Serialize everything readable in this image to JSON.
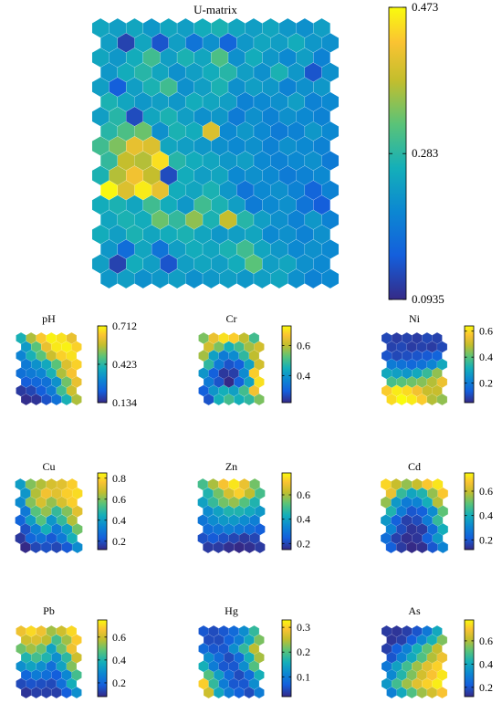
{
  "chart_data": [
    {
      "type": "heatmap",
      "title": "U-matrix",
      "grid_shape": [
        18,
        14
      ],
      "colormap": "parula",
      "colorbar": {
        "min": 0.0935,
        "max": 0.473,
        "ticks": [
          "0.473",
          "0.283",
          "0.0935"
        ]
      },
      "values": [
        [
          0.25,
          0.24,
          0.25,
          0.23,
          0.25,
          0.24,
          0.26,
          0.27,
          0.25,
          0.24,
          0.25,
          0.23,
          0.22,
          0.24
        ],
        [
          0.24,
          0.12,
          0.25,
          0.14,
          0.24,
          0.18,
          0.22,
          0.16,
          0.23,
          0.25,
          0.24,
          0.26,
          0.23,
          0.22
        ],
        [
          0.25,
          0.23,
          0.26,
          0.3,
          0.24,
          0.27,
          0.25,
          0.31,
          0.22,
          0.26,
          0.23,
          0.21,
          0.24,
          0.2
        ],
        [
          0.23,
          0.26,
          0.28,
          0.25,
          0.22,
          0.24,
          0.26,
          0.28,
          0.24,
          0.22,
          0.27,
          0.23,
          0.14,
          0.22
        ],
        [
          0.24,
          0.15,
          0.24,
          0.27,
          0.3,
          0.22,
          0.24,
          0.27,
          0.22,
          0.24,
          0.23,
          0.2,
          0.22,
          0.23
        ],
        [
          0.27,
          0.25,
          0.23,
          0.24,
          0.23,
          0.26,
          0.25,
          0.24,
          0.2,
          0.21,
          0.22,
          0.24,
          0.2,
          0.21
        ],
        [
          0.24,
          0.28,
          0.13,
          0.25,
          0.27,
          0.24,
          0.22,
          0.23,
          0.19,
          0.22,
          0.2,
          0.22,
          0.21,
          0.2
        ],
        [
          0.28,
          0.31,
          0.33,
          0.22,
          0.27,
          0.26,
          0.4,
          0.21,
          0.23,
          0.21,
          0.19,
          0.2,
          0.23,
          0.21
        ],
        [
          0.3,
          0.34,
          0.41,
          0.4,
          0.25,
          0.24,
          0.23,
          0.22,
          0.21,
          0.22,
          0.2,
          0.22,
          0.21,
          0.2
        ],
        [
          0.29,
          0.38,
          0.37,
          0.45,
          0.28,
          0.26,
          0.25,
          0.23,
          0.24,
          0.21,
          0.2,
          0.21,
          0.22,
          0.19
        ],
        [
          0.27,
          0.37,
          0.42,
          0.38,
          0.13,
          0.26,
          0.24,
          0.25,
          0.21,
          0.22,
          0.21,
          0.19,
          0.2,
          0.21
        ],
        [
          0.47,
          0.4,
          0.46,
          0.41,
          0.26,
          0.25,
          0.27,
          0.23,
          0.18,
          0.21,
          0.22,
          0.2,
          0.16,
          0.2
        ],
        [
          0.26,
          0.27,
          0.25,
          0.3,
          0.26,
          0.23,
          0.3,
          0.27,
          0.24,
          0.19,
          0.21,
          0.22,
          0.18,
          0.15
        ],
        [
          0.25,
          0.27,
          0.26,
          0.33,
          0.29,
          0.35,
          0.27,
          0.38,
          0.28,
          0.24,
          0.22,
          0.2,
          0.23,
          0.2
        ],
        [
          0.26,
          0.24,
          0.27,
          0.25,
          0.26,
          0.27,
          0.25,
          0.23,
          0.24,
          0.25,
          0.21,
          0.22,
          0.2,
          0.22
        ],
        [
          0.23,
          0.17,
          0.25,
          0.18,
          0.24,
          0.26,
          0.25,
          0.27,
          0.3,
          0.25,
          0.23,
          0.21,
          0.22,
          0.21
        ],
        [
          0.24,
          0.12,
          0.26,
          0.24,
          0.14,
          0.24,
          0.25,
          0.24,
          0.26,
          0.32,
          0.24,
          0.25,
          0.22,
          0.21
        ],
        [
          0.23,
          0.24,
          0.22,
          0.23,
          0.24,
          0.22,
          0.23,
          0.24,
          0.23,
          0.24,
          0.25,
          0.22,
          0.2,
          0.21
        ]
      ]
    },
    {
      "type": "heatmap",
      "title": "pH",
      "grid_shape": [
        8,
        6
      ],
      "colormap": "parula",
      "colorbar": {
        "min": 0.134,
        "max": 0.712,
        "ticks": [
          "0.712",
          "0.423",
          "0.134"
        ]
      },
      "values": [
        [
          0.4,
          0.55,
          0.65,
          0.7,
          0.68,
          0.62
        ],
        [
          0.35,
          0.48,
          0.62,
          0.69,
          0.7,
          0.66
        ],
        [
          0.3,
          0.4,
          0.48,
          0.58,
          0.66,
          0.68
        ],
        [
          0.28,
          0.33,
          0.38,
          0.48,
          0.6,
          0.66
        ],
        [
          0.26,
          0.28,
          0.3,
          0.4,
          0.55,
          0.64
        ],
        [
          0.22,
          0.24,
          0.26,
          0.33,
          0.5,
          0.62
        ],
        [
          0.16,
          0.18,
          0.22,
          0.28,
          0.45,
          0.58
        ],
        [
          0.14,
          0.15,
          0.2,
          0.26,
          0.4,
          0.55
        ]
      ]
    },
    {
      "type": "heatmap",
      "title": "Cr",
      "grid_shape": [
        8,
        6
      ],
      "colormap": "parula",
      "colorbar": {
        "min": 0.22,
        "max": 0.73,
        "ticks": [
          "0.6",
          "0.4"
        ]
      },
      "values": [
        [
          0.55,
          0.65,
          0.7,
          0.68,
          0.6,
          0.5
        ],
        [
          0.62,
          0.55,
          0.45,
          0.5,
          0.58,
          0.62
        ],
        [
          0.58,
          0.42,
          0.35,
          0.38,
          0.48,
          0.6
        ],
        [
          0.48,
          0.35,
          0.28,
          0.3,
          0.42,
          0.62
        ],
        [
          0.4,
          0.3,
          0.24,
          0.25,
          0.38,
          0.68
        ],
        [
          0.35,
          0.28,
          0.22,
          0.3,
          0.42,
          0.7
        ],
        [
          0.3,
          0.4,
          0.45,
          0.42,
          0.5,
          0.66
        ],
        [
          0.28,
          0.45,
          0.5,
          0.45,
          0.48,
          0.55
        ]
      ]
    },
    {
      "type": "heatmap",
      "title": "Ni",
      "grid_shape": [
        8,
        6
      ],
      "colormap": "parula",
      "colorbar": {
        "min": 0.05,
        "max": 0.64,
        "ticks": [
          "0.6",
          "0.4",
          "0.2"
        ]
      },
      "values": [
        [
          0.1,
          0.08,
          0.09,
          0.08,
          0.1,
          0.09
        ],
        [
          0.09,
          0.1,
          0.08,
          0.09,
          0.08,
          0.1
        ],
        [
          0.12,
          0.1,
          0.11,
          0.12,
          0.13,
          0.15
        ],
        [
          0.2,
          0.18,
          0.16,
          0.18,
          0.22,
          0.3
        ],
        [
          0.3,
          0.28,
          0.26,
          0.3,
          0.36,
          0.45
        ],
        [
          0.38,
          0.4,
          0.42,
          0.44,
          0.48,
          0.55
        ],
        [
          0.58,
          0.62,
          0.6,
          0.56,
          0.5,
          0.5
        ],
        [
          0.6,
          0.64,
          0.62,
          0.58,
          0.48,
          0.45
        ]
      ]
    },
    {
      "type": "heatmap",
      "title": "Cu",
      "grid_shape": [
        8,
        6
      ],
      "colormap": "parula",
      "colorbar": {
        "min": 0.12,
        "max": 0.85,
        "ticks": [
          "0.8",
          "0.6",
          "0.4",
          "0.2"
        ]
      },
      "values": [
        [
          0.4,
          0.6,
          0.65,
          0.7,
          0.72,
          0.78
        ],
        [
          0.38,
          0.65,
          0.75,
          0.72,
          0.78,
          0.8
        ],
        [
          0.35,
          0.6,
          0.7,
          0.62,
          0.7,
          0.78
        ],
        [
          0.3,
          0.55,
          0.62,
          0.5,
          0.6,
          0.72
        ],
        [
          0.25,
          0.4,
          0.55,
          0.38,
          0.5,
          0.65
        ],
        [
          0.2,
          0.32,
          0.45,
          0.3,
          0.4,
          0.58
        ],
        [
          0.15,
          0.25,
          0.28,
          0.22,
          0.3,
          0.45
        ],
        [
          0.12,
          0.18,
          0.2,
          0.18,
          0.22,
          0.35
        ]
      ]
    },
    {
      "type": "heatmap",
      "title": "Zn",
      "grid_shape": [
        8,
        6
      ],
      "colormap": "parula",
      "colorbar": {
        "min": 0.15,
        "max": 0.78,
        "ticks": [
          "0.6",
          "0.4",
          "0.2"
        ]
      },
      "values": [
        [
          0.5,
          0.6,
          0.7,
          0.75,
          0.68,
          0.55
        ],
        [
          0.45,
          0.55,
          0.65,
          0.72,
          0.62,
          0.5
        ],
        [
          0.4,
          0.48,
          0.55,
          0.58,
          0.52,
          0.45
        ],
        [
          0.35,
          0.4,
          0.45,
          0.45,
          0.42,
          0.38
        ],
        [
          0.3,
          0.35,
          0.38,
          0.38,
          0.35,
          0.32
        ],
        [
          0.28,
          0.3,
          0.32,
          0.3,
          0.28,
          0.25
        ],
        [
          0.22,
          0.24,
          0.22,
          0.2,
          0.18,
          0.2
        ],
        [
          0.18,
          0.18,
          0.16,
          0.15,
          0.16,
          0.18
        ]
      ]
    },
    {
      "type": "heatmap",
      "title": "Cd",
      "grid_shape": [
        8,
        6
      ],
      "colormap": "parula",
      "colorbar": {
        "min": 0.12,
        "max": 0.75,
        "ticks": [
          "0.6",
          "0.4",
          "0.2"
        ]
      },
      "values": [
        [
          0.7,
          0.6,
          0.55,
          0.6,
          0.68,
          0.72
        ],
        [
          0.65,
          0.45,
          0.38,
          0.42,
          0.55,
          0.68
        ],
        [
          0.55,
          0.35,
          0.28,
          0.3,
          0.4,
          0.58
        ],
        [
          0.42,
          0.28,
          0.2,
          0.22,
          0.32,
          0.5
        ],
        [
          0.35,
          0.22,
          0.16,
          0.18,
          0.28,
          0.45
        ],
        [
          0.3,
          0.18,
          0.14,
          0.15,
          0.25,
          0.4
        ],
        [
          0.25,
          0.16,
          0.13,
          0.14,
          0.22,
          0.35
        ],
        [
          0.22,
          0.15,
          0.12,
          0.13,
          0.2,
          0.3
        ]
      ]
    },
    {
      "type": "heatmap",
      "title": "Pb",
      "grid_shape": [
        8,
        6
      ],
      "colormap": "parula",
      "colorbar": {
        "min": 0.08,
        "max": 0.75,
        "ticks": [
          "0.6",
          "0.4",
          "0.2"
        ]
      },
      "values": [
        [
          0.65,
          0.7,
          0.65,
          0.55,
          0.6,
          0.7
        ],
        [
          0.6,
          0.62,
          0.58,
          0.45,
          0.55,
          0.68
        ],
        [
          0.5,
          0.55,
          0.5,
          0.35,
          0.5,
          0.65
        ],
        [
          0.4,
          0.45,
          0.4,
          0.3,
          0.42,
          0.6
        ],
        [
          0.3,
          0.35,
          0.3,
          0.22,
          0.35,
          0.52
        ],
        [
          0.2,
          0.25,
          0.22,
          0.18,
          0.28,
          0.45
        ],
        [
          0.14,
          0.16,
          0.15,
          0.14,
          0.22,
          0.38
        ],
        [
          0.1,
          0.12,
          0.12,
          0.12,
          0.18,
          0.3
        ]
      ]
    },
    {
      "type": "heatmap",
      "title": "Hg",
      "grid_shape": [
        8,
        6
      ],
      "colormap": "parula",
      "colorbar": {
        "min": 0.02,
        "max": 0.33,
        "ticks": [
          "0.3",
          "0.2",
          "0.1"
        ]
      },
      "values": [
        [
          0.06,
          0.05,
          0.06,
          0.08,
          0.12,
          0.18
        ],
        [
          0.05,
          0.05,
          0.07,
          0.1,
          0.15,
          0.22
        ],
        [
          0.08,
          0.06,
          0.06,
          0.12,
          0.18,
          0.25
        ],
        [
          0.12,
          0.08,
          0.05,
          0.08,
          0.16,
          0.24
        ],
        [
          0.16,
          0.1,
          0.06,
          0.06,
          0.12,
          0.2
        ],
        [
          0.2,
          0.14,
          0.08,
          0.05,
          0.08,
          0.16
        ],
        [
          0.3,
          0.18,
          0.1,
          0.06,
          0.06,
          0.12
        ],
        [
          0.26,
          0.15,
          0.1,
          0.07,
          0.05,
          0.1
        ]
      ]
    },
    {
      "type": "heatmap",
      "title": "As",
      "grid_shape": [
        8,
        6
      ],
      "colormap": "parula",
      "colorbar": {
        "min": 0.12,
        "max": 0.78,
        "ticks": [
          "0.6",
          "0.4",
          "0.2"
        ]
      },
      "values": [
        [
          0.15,
          0.14,
          0.16,
          0.2,
          0.28,
          0.4
        ],
        [
          0.14,
          0.16,
          0.22,
          0.32,
          0.42,
          0.55
        ],
        [
          0.16,
          0.22,
          0.3,
          0.42,
          0.52,
          0.62
        ],
        [
          0.2,
          0.3,
          0.4,
          0.5,
          0.6,
          0.68
        ],
        [
          0.28,
          0.38,
          0.48,
          0.58,
          0.66,
          0.72
        ],
        [
          0.32,
          0.44,
          0.55,
          0.64,
          0.7,
          0.75
        ],
        [
          0.36,
          0.48,
          0.58,
          0.66,
          0.72,
          0.76
        ],
        [
          0.3,
          0.4,
          0.5,
          0.58,
          0.64,
          0.7
        ]
      ]
    }
  ]
}
